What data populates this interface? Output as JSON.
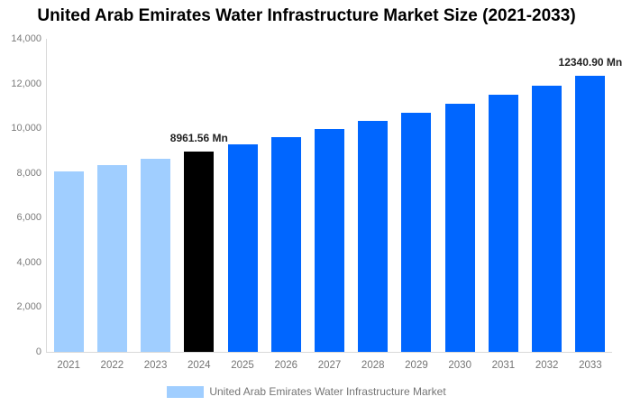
{
  "header": {
    "title": "United Arab Emirates Water Infrastructure Market Size (2021-2033)"
  },
  "legend": {
    "label": "United Arab Emirates Water Infrastructure Market",
    "swatch_color": "#A0CEFF"
  },
  "chart_data": {
    "type": "bar",
    "title": "United Arab Emirates Water Infrastructure Market Size (2021-2033)",
    "unit": "Mn",
    "categories": [
      "2021",
      "2022",
      "2023",
      "2024",
      "2025",
      "2026",
      "2027",
      "2028",
      "2029",
      "2030",
      "2031",
      "2032",
      "2033"
    ],
    "values": [
      8055,
      8347,
      8649,
      8961.56,
      9286,
      9622,
      9970,
      10331,
      10705,
      11092,
      11493,
      11909,
      12340.9
    ],
    "bar_colors": [
      "#A0CEFF",
      "#A0CEFF",
      "#A0CEFF",
      "#000000",
      "#0066FF",
      "#0066FF",
      "#0066FF",
      "#0066FF",
      "#0066FF",
      "#0066FF",
      "#0066FF",
      "#0066FF",
      "#0066FF"
    ],
    "data_labels": [
      {
        "category": "2024",
        "text": "8961.56 Mn"
      },
      {
        "category": "2033",
        "text": "12340.90 Mn"
      }
    ],
    "xlabel": "",
    "ylabel": "",
    "ylim": [
      0,
      14000
    ],
    "ytick_interval": 2000,
    "yticks_top_to_bottom": [
      "14,000",
      "12,000",
      "10,000",
      "8,000",
      "6,000",
      "4,000",
      "2,000",
      "0"
    ],
    "grid": false,
    "legend_position": "bottom",
    "series_name": "United Arab Emirates Water Infrastructure Market",
    "colors": {
      "historical_bar": "#A0CEFF",
      "base_year_bar": "#000000",
      "forecast_bar": "#0066FF",
      "axis_line": "#D9D9D9",
      "tick_text": "#7a7a7a",
      "value_label_text": "#222222"
    }
  }
}
